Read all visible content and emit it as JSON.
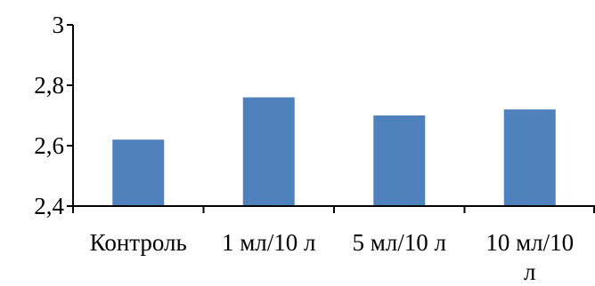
{
  "chart_data": {
    "type": "bar",
    "categories": [
      "Контроль",
      "1 мл/10 л",
      "5 мл/10 л",
      "10 мл/10 л"
    ],
    "category_label_lines": [
      [
        "Контроль"
      ],
      [
        "1 мл/10 л"
      ],
      [
        "5 мл/10 л"
      ],
      [
        "10 мл/10",
        "л"
      ]
    ],
    "values": [
      2.62,
      2.76,
      2.7,
      2.72
    ],
    "ylim": [
      2.4,
      3.0
    ],
    "yticks": [
      2.4,
      2.6,
      2.8,
      3.0
    ],
    "ytick_labels": [
      "2,4",
      "2,6",
      "2,8",
      "3"
    ],
    "title": "",
    "xlabel": "",
    "ylabel": "",
    "grid": false,
    "legend": "none",
    "bar_color": "#4f81bd",
    "axis_color": "#000000"
  }
}
